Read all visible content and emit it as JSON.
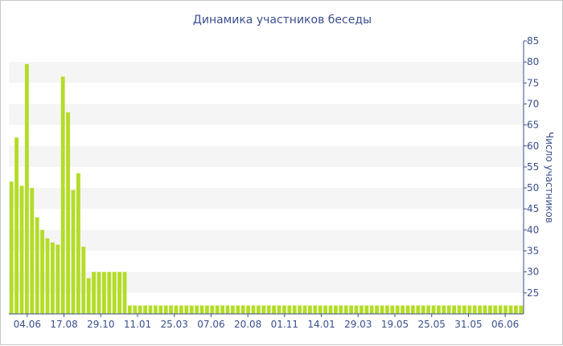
{
  "chart_data": {
    "type": "bar",
    "title": "Динамика участников беседы",
    "ylabel": "Число участников",
    "xlabel": "",
    "ylim": [
      20,
      85
    ],
    "yticks": [
      25,
      30,
      35,
      40,
      45,
      50,
      55,
      60,
      65,
      70,
      75,
      80,
      85
    ],
    "x_tick_labels": [
      "04.06",
      "17.08",
      "29.10",
      "11.01",
      "25.03",
      "07.06",
      "20.08",
      "01.11",
      "14.01",
      "29.03",
      "19.05",
      "25.05",
      "31.05",
      "06.06"
    ],
    "y_axis_position": "right",
    "grid": "alternating horizontal bands",
    "legend": "none",
    "bar_color": "#b4dc28",
    "band_color": "#f5f5f5",
    "values": [
      51.5,
      62,
      50.5,
      79.5,
      50,
      43,
      40,
      38,
      37,
      36.5,
      76.5,
      68,
      49.5,
      53.5,
      36,
      28.5,
      30,
      30,
      30,
      30,
      30,
      30,
      30,
      22,
      22,
      22,
      22,
      22,
      22,
      22,
      22,
      22,
      22,
      22,
      22,
      22,
      22,
      22,
      22,
      22,
      22,
      22,
      22,
      22,
      22,
      22,
      22,
      22,
      22,
      22,
      22,
      22,
      22,
      22,
      22,
      22,
      22,
      22,
      22,
      22,
      22,
      22,
      22,
      22,
      22,
      22,
      22,
      22,
      22,
      22,
      22,
      22,
      22,
      22,
      22,
      22,
      22,
      22,
      22,
      22,
      22,
      22,
      22,
      22,
      22,
      22,
      22,
      22,
      22,
      22,
      22,
      22,
      22,
      22,
      22,
      22,
      22,
      22,
      22,
      22
    ]
  },
  "colors": {
    "text": "#3a4f8c",
    "axis": "#3a4f8c",
    "border": "#c8c8c8"
  }
}
